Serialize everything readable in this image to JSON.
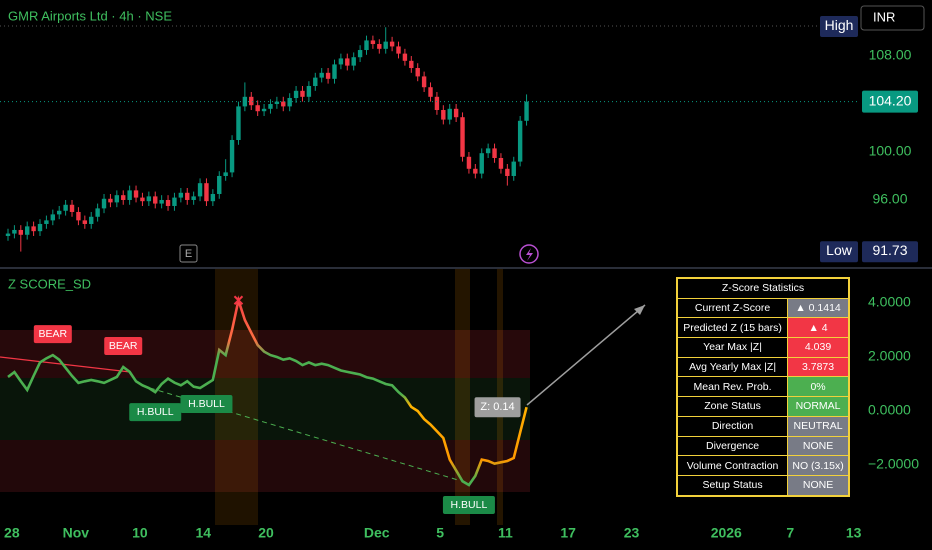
{
  "header": {
    "title": "GMR Airports Ltd · 4h · NSE",
    "currency": "INR"
  },
  "chart_data": [
    {
      "type": "candlestick",
      "open": [
        93.0,
        93.2,
        93.5,
        93.1,
        93.8,
        93.4,
        94.0,
        94.3,
        94.8,
        95.1,
        95.6,
        95.0,
        94.3,
        94.0,
        94.6,
        95.3,
        96.1,
        95.8,
        96.4,
        96.0,
        96.8,
        96.2,
        95.9,
        96.3,
        95.7,
        96.0,
        95.5,
        96.2,
        96.6,
        96.0,
        96.3,
        97.4,
        95.9,
        96.5,
        98.0,
        98.3,
        101.0,
        103.8,
        104.6,
        103.9,
        103.4,
        103.6,
        104.0,
        104.2,
        103.8,
        104.5,
        105.1,
        104.6,
        105.5,
        106.2,
        106.6,
        106.1,
        107.3,
        107.8,
        107.2,
        107.9,
        108.5,
        109.3,
        109.0,
        108.6,
        109.2,
        108.8,
        108.2,
        107.6,
        107.0,
        106.3,
        105.4,
        104.6,
        103.5,
        102.7,
        103.6,
        102.9,
        99.6,
        98.6,
        98.2,
        99.9,
        100.3,
        99.5,
        98.6,
        98.0,
        99.2,
        102.6
      ],
      "high": [
        93.6,
        93.9,
        93.9,
        94.2,
        94.2,
        94.4,
        94.7,
        95.2,
        95.5,
        96.0,
        96.0,
        95.4,
        94.7,
        95.0,
        95.7,
        96.5,
        96.5,
        96.8,
        96.8,
        97.2,
        97.2,
        96.6,
        96.7,
        96.7,
        96.4,
        96.4,
        96.6,
        97.0,
        97.0,
        96.7,
        97.8,
        97.8,
        96.9,
        98.4,
        99.4,
        101.4,
        104.2,
        105.8,
        105.0,
        104.3,
        104.0,
        104.4,
        104.6,
        104.6,
        104.9,
        105.5,
        105.5,
        105.9,
        106.6,
        107.0,
        107.0,
        107.7,
        108.2,
        108.2,
        108.3,
        108.9,
        109.7,
        109.7,
        109.4,
        110.4,
        109.6,
        109.2,
        108.6,
        108.0,
        107.4,
        106.7,
        105.8,
        105.0,
        103.9,
        104.0,
        104.0,
        103.3,
        100.0,
        99.0,
        100.3,
        100.7,
        100.7,
        99.9,
        99.0,
        99.6,
        103.0,
        104.8
      ],
      "low": [
        92.6,
        92.8,
        91.7,
        92.7,
        93.0,
        93.0,
        93.6,
        93.9,
        94.4,
        94.7,
        94.6,
        93.9,
        93.6,
        93.6,
        94.2,
        94.9,
        95.4,
        95.4,
        95.6,
        95.6,
        95.8,
        95.5,
        95.5,
        95.3,
        95.3,
        95.1,
        95.1,
        95.8,
        95.6,
        95.6,
        95.9,
        95.5,
        95.5,
        96.1,
        97.6,
        97.9,
        100.6,
        103.4,
        103.5,
        103.0,
        103.0,
        103.2,
        103.6,
        103.4,
        103.4,
        104.1,
        104.2,
        104.2,
        105.1,
        105.8,
        105.7,
        105.7,
        106.9,
        106.8,
        106.8,
        107.5,
        108.1,
        108.6,
        108.2,
        108.2,
        108.4,
        107.8,
        107.2,
        106.6,
        105.9,
        105.0,
        104.2,
        103.1,
        102.3,
        102.3,
        102.5,
        99.2,
        98.2,
        97.8,
        97.8,
        99.5,
        99.1,
        98.2,
        97.2,
        97.6,
        98.8,
        102.2
      ],
      "close": [
        93.2,
        93.5,
        93.1,
        93.8,
        93.4,
        94.0,
        94.3,
        94.8,
        95.1,
        95.6,
        95.0,
        94.3,
        94.0,
        94.6,
        95.3,
        96.1,
        95.8,
        96.4,
        96.0,
        96.8,
        96.2,
        95.9,
        96.3,
        95.7,
        96.0,
        95.5,
        96.2,
        96.6,
        96.0,
        96.3,
        97.4,
        95.9,
        96.5,
        98.0,
        98.3,
        101.0,
        103.8,
        104.6,
        103.9,
        103.4,
        103.6,
        104.0,
        104.2,
        103.8,
        104.5,
        105.1,
        104.6,
        105.5,
        106.2,
        106.6,
        106.1,
        107.3,
        107.8,
        107.2,
        107.9,
        108.5,
        109.3,
        109.0,
        108.6,
        109.2,
        108.8,
        108.2,
        107.6,
        107.0,
        106.3,
        105.4,
        104.6,
        103.5,
        102.7,
        103.6,
        102.9,
        99.6,
        98.6,
        98.2,
        99.9,
        100.3,
        99.5,
        98.6,
        98.0,
        99.2,
        102.6,
        104.2
      ],
      "up_color": "#089981",
      "down_color": "#f23645",
      "xlim": [
        0,
        133.4
      ],
      "ylim": [
        90.58,
        112.67
      ],
      "yticks": [
        {
          "value": 108,
          "label": "108.00"
        },
        {
          "value": 100,
          "label": "100.00"
        },
        {
          "value": 96,
          "label": "96.00"
        }
      ],
      "last_price": {
        "value": 104.2,
        "label": "104.20"
      },
      "high_label": "High",
      "low_label": {
        "name": "Low",
        "value": 91.73,
        "label": "91.73"
      }
    },
    {
      "type": "line",
      "title": "Z SCORE_SD",
      "series": [
        {
          "values": [
            1.26,
            1.44,
            1.1,
            0.78,
            1.3,
            1.8,
            1.95,
            2.07,
            1.9,
            1.6,
            1.3,
            1.04,
            1.1,
            1.15,
            1.1,
            1.04,
            1.15,
            1.26,
            1.63,
            1.45,
            1.1,
            0.95,
            0.85,
            0.7,
            1.0,
            1.2,
            1.05,
            0.95,
            1.1,
            0.9,
            0.85,
            1.0,
            1.15,
            2.26,
            2.07,
            3.0,
            4.1,
            3.37,
            2.9,
            2.44,
            2.2,
            2.07,
            2.0,
            1.9,
            1.95,
            1.85,
            1.7,
            1.8,
            1.7,
            1.75,
            1.7,
            1.6,
            1.5,
            1.45,
            1.4,
            1.35,
            1.25,
            1.2,
            1.1,
            1.0,
            0.95,
            0.7,
            0.5,
            0.15,
            0.0,
            -0.3,
            -0.5,
            -0.75,
            -1.0,
            -1.8,
            -2.2,
            -2.6,
            -2.74,
            -2.4,
            -1.8,
            -1.85,
            -1.95,
            -1.9,
            -1.85,
            -1.74,
            -0.8,
            0.14
          ]
        }
      ],
      "xlim": [
        0,
        133.4
      ],
      "ylim": [
        -4.22,
        5.22
      ],
      "yticks": [
        {
          "value": 4,
          "label": "4.0000"
        },
        {
          "value": 2,
          "label": "2.0000"
        },
        {
          "value": 0,
          "label": "0.0000"
        },
        {
          "value": -2,
          "label": "−2.0000"
        }
      ],
      "xticks": [
        {
          "value": 0.6,
          "label": "28"
        },
        {
          "value": 10.6,
          "label": "Nov"
        },
        {
          "value": 20.6,
          "label": "10"
        },
        {
          "value": 30.5,
          "label": "14"
        },
        {
          "value": 40.3,
          "label": "20"
        },
        {
          "value": 57.6,
          "label": "Dec"
        },
        {
          "value": 67.5,
          "label": "5"
        },
        {
          "value": 77.7,
          "label": "11"
        },
        {
          "value": 87.5,
          "label": "17"
        },
        {
          "value": 97.4,
          "label": "23"
        },
        {
          "value": 112.2,
          "label": "2026"
        },
        {
          "value": 122.2,
          "label": "7"
        },
        {
          "value": 132.1,
          "label": "13"
        }
      ],
      "current_label": {
        "value": 0.14,
        "label": "Z: 0.14"
      },
      "annotations": [
        {
          "text": "BEAR",
          "index": 7
        },
        {
          "text": "BEAR",
          "index": 18
        },
        {
          "text": "H.BULL",
          "index": 23
        },
        {
          "text": "H.BULL",
          "index": 31
        },
        {
          "text": "H.BULL",
          "index": 72
        }
      ]
    }
  ],
  "stats_table": {
    "title": "Z-Score Statistics",
    "rows": [
      [
        "Current Z-Score",
        "▲ 0.1414"
      ],
      [
        "Predicted Z (15 bars)",
        "▲ 4"
      ],
      [
        "Year Max |Z|",
        "4.039"
      ],
      [
        "Avg Yearly Max |Z|",
        "3.7873"
      ],
      [
        "Mean Rev. Prob.",
        "0%"
      ],
      [
        "Zone Status",
        "NORMAL"
      ],
      [
        "Direction",
        "NEUTRAL"
      ],
      [
        "Divergence",
        "NONE"
      ],
      [
        "Volume Contraction",
        "NO (3.15x)"
      ],
      [
        "Setup Status",
        "NONE"
      ]
    ]
  }
}
